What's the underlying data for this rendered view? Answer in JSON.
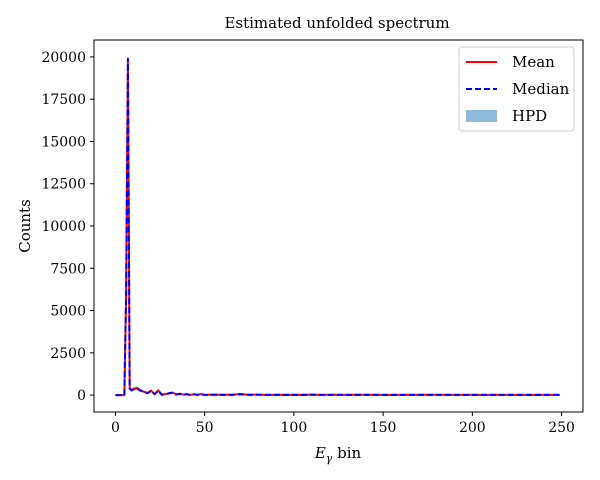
{
  "chart_data": {
    "type": "line",
    "title": "Estimated unfolded spectrum",
    "xlabel_main": "E",
    "xlabel_sub": "γ",
    "xlabel_rest": " bin",
    "ylabel": "Counts",
    "xlim": [
      -12,
      262
    ],
    "ylim": [
      -1000,
      21000
    ],
    "xticks": [
      0,
      50,
      100,
      150,
      200,
      250
    ],
    "yticks": [
      0,
      2500,
      5000,
      7500,
      10000,
      12500,
      15000,
      17500,
      20000
    ],
    "legend_position": "top-right",
    "series": [
      {
        "name": "Mean",
        "color": "#ff0000",
        "style": "solid",
        "x": [
          0,
          5,
          6,
          7,
          8,
          9,
          10,
          12,
          14,
          16,
          18,
          20,
          22,
          24,
          26,
          28,
          30,
          32,
          34,
          36,
          38,
          40,
          42,
          44,
          46,
          48,
          50,
          55,
          60,
          65,
          70,
          75,
          80,
          85,
          90,
          95,
          100,
          105,
          110,
          115,
          120,
          125,
          130,
          140,
          150,
          160,
          175,
          190,
          200,
          220,
          240,
          249
        ],
        "y": [
          0,
          0,
          6000,
          19800,
          400,
          300,
          350,
          420,
          280,
          200,
          120,
          260,
          60,
          280,
          30,
          60,
          110,
          150,
          40,
          80,
          30,
          60,
          10,
          50,
          20,
          60,
          10,
          30,
          20,
          20,
          60,
          20,
          30,
          10,
          20,
          10,
          20,
          10,
          30,
          10,
          20,
          20,
          10,
          20,
          10,
          10,
          20,
          10,
          10,
          10,
          10,
          10
        ]
      },
      {
        "name": "Median",
        "color": "#0000ff",
        "style": "dashed",
        "x": [
          0,
          5,
          6,
          7,
          8,
          9,
          10,
          12,
          14,
          16,
          18,
          20,
          22,
          24,
          26,
          28,
          30,
          32,
          34,
          36,
          38,
          40,
          42,
          44,
          46,
          48,
          50,
          55,
          60,
          65,
          70,
          75,
          80,
          85,
          90,
          95,
          100,
          105,
          110,
          115,
          120,
          125,
          130,
          140,
          150,
          160,
          175,
          190,
          200,
          220,
          240,
          249
        ],
        "y": [
          0,
          0,
          5800,
          19900,
          380,
          280,
          330,
          400,
          260,
          190,
          110,
          240,
          50,
          250,
          20,
          50,
          100,
          140,
          30,
          70,
          20,
          50,
          10,
          40,
          10,
          50,
          10,
          20,
          10,
          10,
          50,
          10,
          20,
          10,
          10,
          10,
          10,
          10,
          20,
          10,
          10,
          10,
          10,
          10,
          10,
          10,
          10,
          10,
          10,
          10,
          10,
          10
        ]
      },
      {
        "name": "HPD",
        "color": "#1f77b4",
        "style": "band",
        "x": [
          0,
          5,
          6,
          7,
          8,
          9,
          10,
          12,
          14,
          16,
          18,
          20,
          22,
          24,
          26,
          28,
          30,
          32,
          34,
          36,
          38,
          40,
          42,
          44,
          46,
          48,
          50,
          55,
          60,
          65,
          70,
          75,
          80,
          85,
          90,
          95,
          100,
          105,
          110,
          115,
          120,
          125,
          130,
          140,
          150,
          160,
          175,
          190,
          200,
          220,
          240,
          249
        ],
        "lower": [
          0,
          0,
          5500,
          19500,
          300,
          200,
          250,
          320,
          200,
          130,
          60,
          180,
          20,
          180,
          0,
          20,
          60,
          100,
          0,
          40,
          0,
          20,
          0,
          10,
          0,
          20,
          0,
          0,
          0,
          0,
          20,
          0,
          0,
          0,
          0,
          0,
          0,
          0,
          0,
          0,
          0,
          0,
          0,
          0,
          0,
          0,
          0,
          0,
          0,
          0,
          0,
          0
        ],
        "upper": [
          0,
          0,
          6400,
          20200,
          500,
          400,
          450,
          520,
          360,
          270,
          180,
          340,
          110,
          360,
          80,
          110,
          160,
          210,
          90,
          130,
          80,
          110,
          50,
          100,
          60,
          110,
          50,
          70,
          60,
          60,
          110,
          60,
          70,
          50,
          60,
          50,
          60,
          50,
          70,
          50,
          60,
          60,
          50,
          60,
          50,
          50,
          60,
          50,
          50,
          50,
          50,
          50
        ]
      }
    ]
  }
}
